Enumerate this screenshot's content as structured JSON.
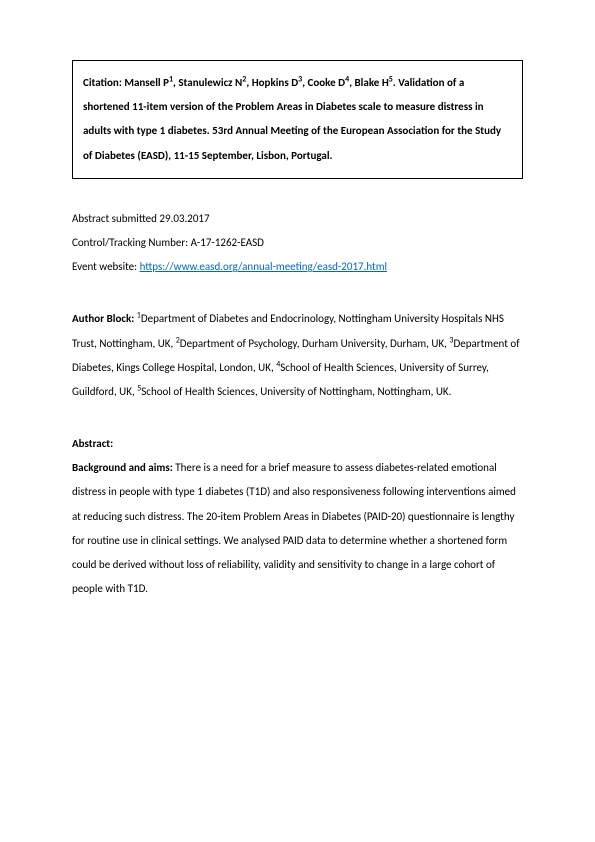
{
  "citation": {
    "authors": [
      {
        "name": "Mansell P",
        "sup": "1"
      },
      {
        "name": "Stanulewicz N",
        "sup": "2"
      },
      {
        "name": "Hopkins D",
        "sup": "3"
      },
      {
        "name": "Cooke D",
        "sup": "4"
      },
      {
        "name": "Blake H",
        "sup": "5"
      }
    ],
    "title": "Validation of a shortened 11-item version of the Problem Areas in Diabetes scale to measure distress in adults with type 1 diabetes. 53rd Annual Meeting of the European Association for the Study of Diabetes (EASD), 11-15 September, Lisbon, Portugal.",
    "prefix": "Citation: "
  },
  "meta": {
    "submitted": "Abstract submitted 29.03.2017",
    "tracking": "Control/Tracking Number: A-17-1262-EASD",
    "website_label": "Event website: ",
    "website_url": "https://www.easd.org/annual-meeting/easd-2017.html"
  },
  "author_block": {
    "label": "Author Block: ",
    "affiliations": [
      {
        "sup": "1",
        "text": "Department of Diabetes and Endocrinology, Nottingham University Hospitals NHS Trust, Nottingham, UK, "
      },
      {
        "sup": "2",
        "text": "Department of Psychology, Durham University, Durham, UK, "
      },
      {
        "sup": "3",
        "text": "Department of Diabetes, Kings College Hospital, London, UK, "
      },
      {
        "sup": "4",
        "text": "School of Health Sciences, University of Surrey, Guildford, UK, "
      },
      {
        "sup": "5",
        "text": "School of Health Sciences, University of Nottingham, Nottingham, UK."
      }
    ]
  },
  "abstract": {
    "label": "Abstract:",
    "background_label": "Background and aims: ",
    "background_text": "There is a need for a brief measure to assess diabetes-related emotional distress in people with type 1 diabetes (T1D) and also responsiveness following interventions aimed at reducing such distress. The 20-item Problem Areas in Diabetes (PAID-20) questionnaire is lengthy for routine use in clinical settings. We analysed PAID data to determine whether a shortened form could be derived without loss of reliability, validity and sensitivity to change in a large cohort of people with T1D."
  },
  "colors": {
    "text": "#000000",
    "link": "#0066cc",
    "background": "#ffffff",
    "border": "#000000"
  },
  "typography": {
    "base_fontsize": 11,
    "sup_fontsize": 8,
    "line_height": 2.2,
    "font_family": "Calibri, Arial, sans-serif"
  }
}
